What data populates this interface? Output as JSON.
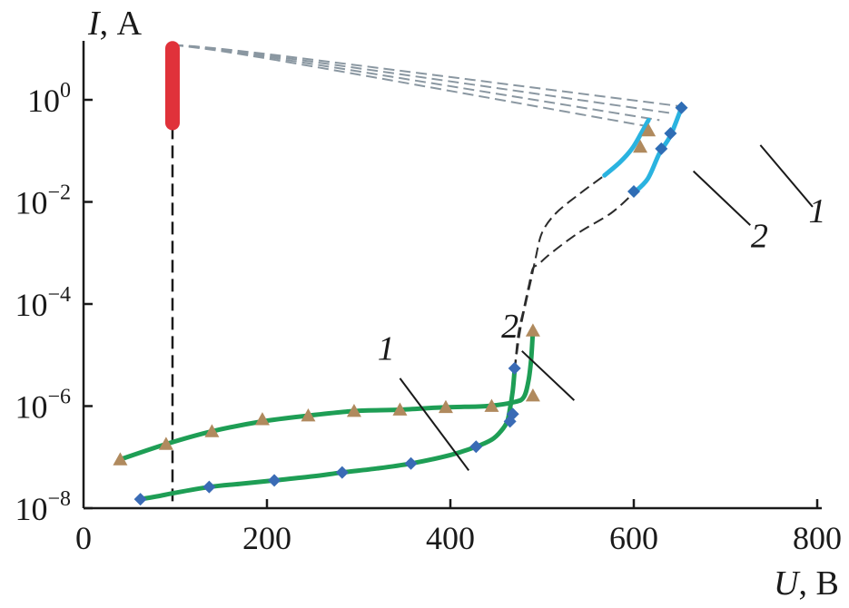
{
  "chart_data": {
    "type": "line",
    "y_scale": "log",
    "xlim": [
      0,
      800
    ],
    "ylim": [
      1e-08,
      10
    ],
    "x_ticks": [
      {
        "value": 0,
        "label": "0"
      },
      {
        "value": 200,
        "label": "200"
      },
      {
        "value": 400,
        "label": "400"
      },
      {
        "value": 600,
        "label": "600"
      },
      {
        "value": 800,
        "label": "800"
      }
    ],
    "y_ticks": [
      {
        "value": 1e-08,
        "base": "10",
        "exp": "−8"
      },
      {
        "value": 1e-06,
        "base": "10",
        "exp": "−6"
      },
      {
        "value": 0.0001,
        "base": "10",
        "exp": "−4"
      },
      {
        "value": 0.01,
        "base": "10",
        "exp": "−2"
      },
      {
        "value": 1,
        "base": "10",
        "exp": "0"
      }
    ],
    "xlabel": {
      "var": "U",
      "unit": ", В"
    },
    "ylabel": {
      "var": "I",
      "unit": ", А"
    },
    "grid": false,
    "curve_labels": [
      {
        "text": "1",
        "x": 330,
        "y": 8e-06,
        "pointer": [
          [
            345,
            3.5e-06
          ],
          [
            420,
            5.5e-08
          ]
        ]
      },
      {
        "text": "2",
        "x": 465,
        "y": 2.2e-05,
        "pointer": [
          [
            478,
            1.2e-05
          ],
          [
            535,
            1.3e-06
          ]
        ]
      },
      {
        "text": "1",
        "x": 800,
        "y": 0.004,
        "pointer": [
          [
            795,
            0.008
          ],
          [
            738,
            0.13
          ]
        ]
      },
      {
        "text": "2",
        "x": 737,
        "y": 0.0013,
        "pointer": [
          [
            727,
            0.0035
          ],
          [
            665,
            0.04
          ]
        ]
      }
    ],
    "series": [
      {
        "name": "1",
        "color": "#1e9e55",
        "marker_color": "#3a6bb5",
        "marker": "diamond",
        "x": [
          62,
          80,
          100,
          137,
          170,
          208,
          250,
          282,
          320,
          357,
          400,
          428,
          445,
          455,
          462,
          465,
          468,
          470
        ],
        "y": [
          1.5e-08,
          1.7e-08,
          2e-08,
          2.6e-08,
          3e-08,
          3.5e-08,
          4.2e-08,
          5e-08,
          6e-08,
          7.5e-08,
          1.1e-07,
          1.6e-07,
          2.2e-07,
          3.2e-07,
          5e-07,
          9e-07,
          2e-06,
          5e-06
        ],
        "markers_x": [
          62,
          137,
          208,
          282,
          357,
          428,
          465,
          468,
          470
        ],
        "markers_y": [
          1.5e-08,
          2.6e-08,
          3.5e-08,
          5e-08,
          7.5e-08,
          1.6e-07,
          5e-07,
          7e-07,
          5.5e-06
        ]
      },
      {
        "name": "2",
        "color": "#1e9e55",
        "marker_color": "#b08a5e",
        "marker": "triangle",
        "x": [
          40,
          90,
          140,
          195,
          245,
          295,
          345,
          395,
          440,
          470,
          480,
          485,
          488,
          490
        ],
        "y": [
          9e-08,
          1.8e-07,
          3.2e-07,
          5e-07,
          6.5e-07,
          8e-07,
          8.5e-07,
          9.5e-07,
          1e-06,
          1.2e-06,
          1.5e-06,
          3e-06,
          8e-06,
          3e-05
        ],
        "markers_x": [
          40,
          90,
          140,
          195,
          245,
          295,
          345,
          395,
          445,
          490,
          490
        ],
        "markers_y": [
          9e-08,
          1.8e-07,
          3.2e-07,
          5.5e-07,
          6.5e-07,
          8e-07,
          8.5e-07,
          9.5e-07,
          1e-06,
          1.6e-06,
          3e-05
        ]
      },
      {
        "name": "1",
        "color": "#2ab3e0",
        "marker_color": "#2f6db5",
        "marker": "diamond",
        "x": [
          600,
          615,
          628,
          640,
          652
        ],
        "y": [
          0.015,
          0.028,
          0.09,
          0.2,
          0.7
        ],
        "markers_x": [
          600,
          630,
          640,
          652
        ],
        "markers_y": [
          0.016,
          0.11,
          0.22,
          0.7
        ]
      },
      {
        "name": "2",
        "color": "#2ab3e0",
        "marker_color": "#b08a5e",
        "marker": "triangle",
        "x": [
          568,
          585,
          598,
          608,
          616
        ],
        "y": [
          0.033,
          0.06,
          0.11,
          0.22,
          0.4
        ],
        "markers_x": [
          607,
          616
        ],
        "markers_y": [
          0.12,
          0.25
        ]
      }
    ],
    "dashed_connectors": [
      {
        "color": "#2b2b2b",
        "x": [
          470,
          474,
          480,
          486,
          490,
          496,
          510,
          540,
          575,
          600
        ],
        "y": [
          5e-06,
          2.5e-05,
          8e-05,
          0.00025,
          0.0005,
          0.0006,
          0.001,
          0.0025,
          0.006,
          0.015
        ]
      },
      {
        "color": "#2b2b2b",
        "x": [
          470,
          476,
          482,
          488,
          493,
          500,
          515,
          540,
          568
        ],
        "y": [
          5e-06,
          3e-05,
          0.0001,
          0.0003,
          0.0008,
          0.0025,
          0.006,
          0.014,
          0.033
        ]
      },
      {
        "color": "#8a97a1",
        "x": [
          97,
          210,
          650
        ],
        "y": [
          12,
          7.5,
          0.75
        ]
      },
      {
        "color": "#8a97a1",
        "x": [
          97,
          210,
          640
        ],
        "y": [
          12,
          7.0,
          0.55
        ]
      },
      {
        "color": "#8a97a1",
        "x": [
          97,
          210,
          628
        ],
        "y": [
          12,
          6.5,
          0.4
        ]
      },
      {
        "color": "#8a97a1",
        "x": [
          97,
          210,
          616
        ],
        "y": [
          12,
          6.0,
          0.3
        ]
      },
      {
        "color": "#1a1a1a",
        "x": [
          97,
          97
        ],
        "y": [
          0.3,
          1e-08
        ]
      }
    ],
    "bar_marker": {
      "color": "#e0323a",
      "x": 97,
      "y_top": 12,
      "y_bottom": 0.3
    }
  }
}
